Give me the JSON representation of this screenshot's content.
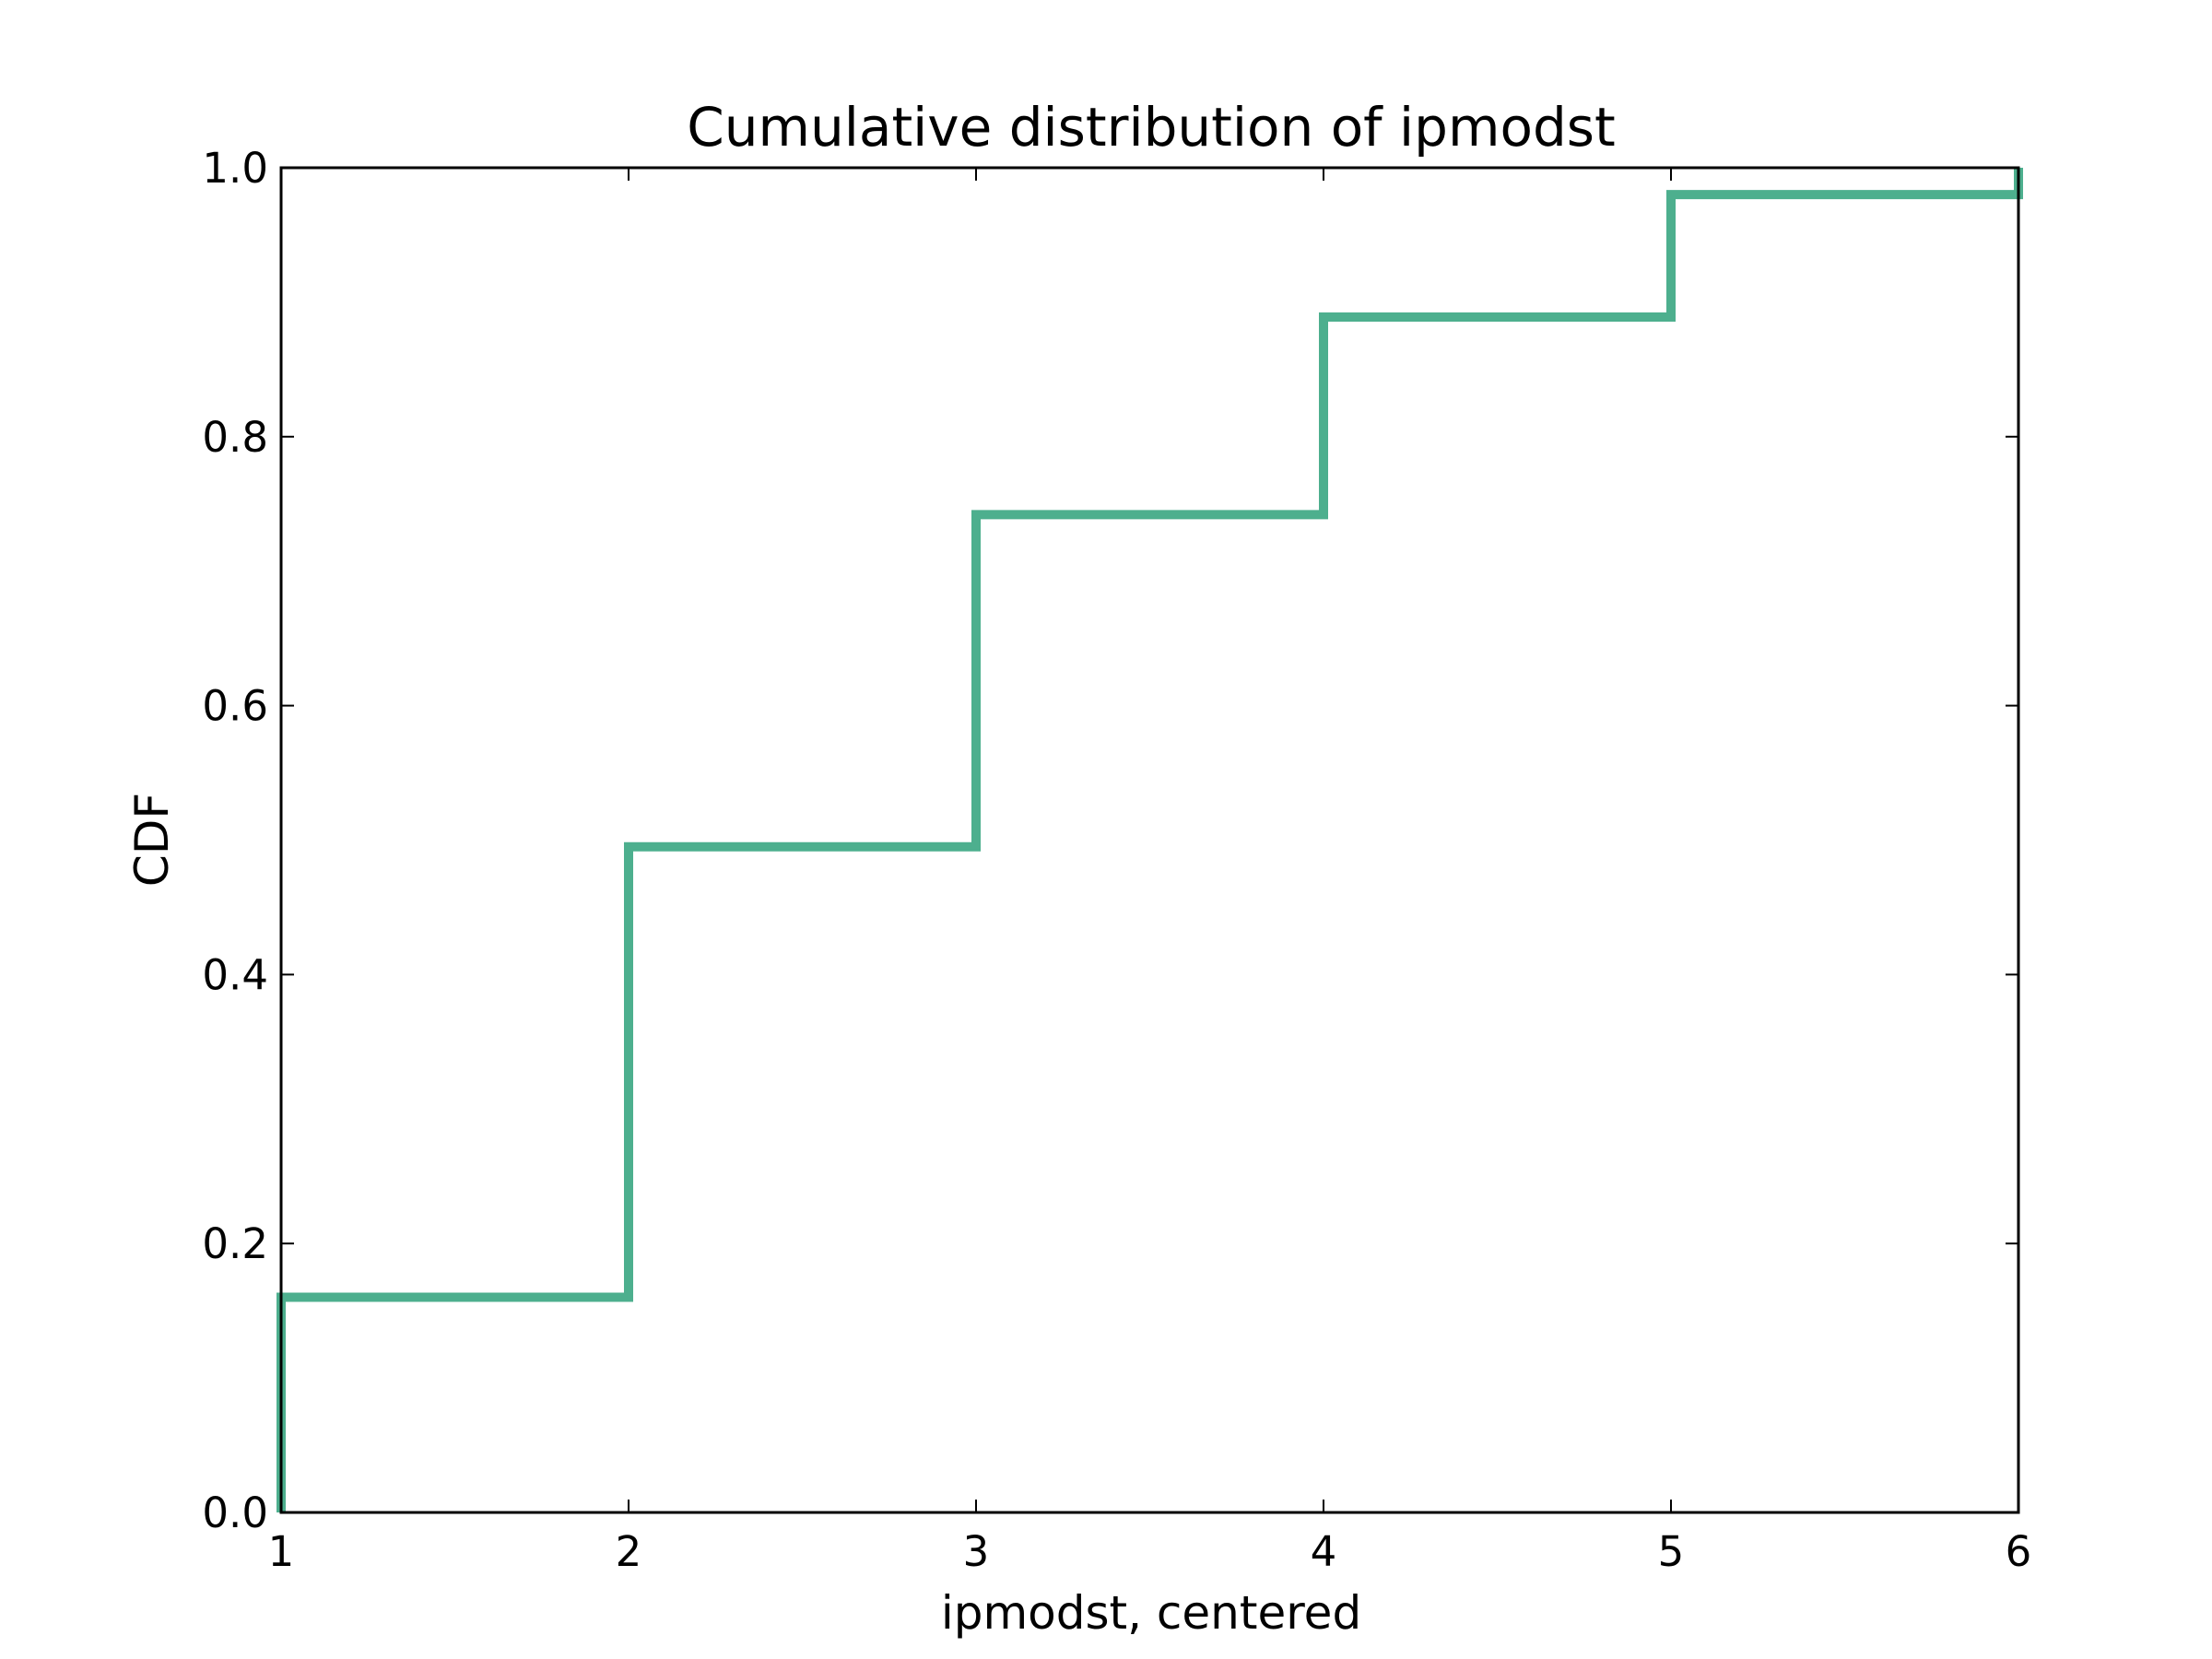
{
  "chart_data": {
    "type": "line",
    "step": "post",
    "title": "Cumulative distribution of ipmodst",
    "xlabel": "ipmodst, centered",
    "ylabel": "CDF",
    "xlim": [
      1,
      6
    ],
    "ylim": [
      0.0,
      1.0
    ],
    "xticks": [
      1,
      2,
      3,
      4,
      5,
      6
    ],
    "xtick_labels": [
      "1",
      "2",
      "3",
      "4",
      "5",
      "6"
    ],
    "yticks": [
      0.0,
      0.2,
      0.4,
      0.6,
      0.8,
      1.0
    ],
    "ytick_labels": [
      "0.0",
      "0.2",
      "0.4",
      "0.6",
      "0.8",
      "1.0"
    ],
    "grid": false,
    "legend": "none",
    "series": [
      {
        "color": "#4daf8e",
        "x": [
          1,
          1,
          2,
          3,
          4,
          5,
          6,
          6
        ],
        "y": [
          0.0,
          0.16,
          0.495,
          0.742,
          0.889,
          0.98,
          0.98,
          1.0
        ]
      }
    ]
  }
}
